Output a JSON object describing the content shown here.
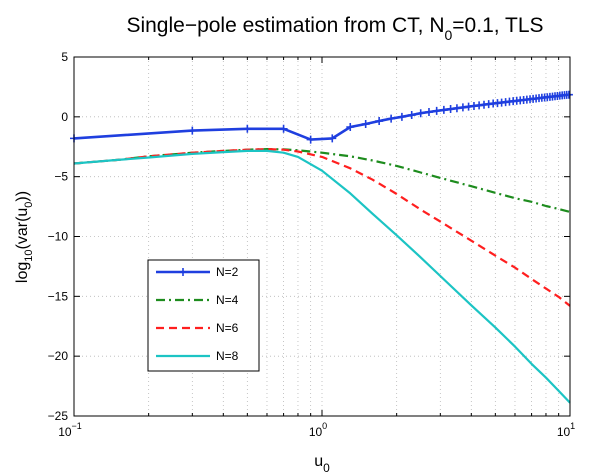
{
  "chart_data": {
    "type": "line",
    "title": "Single−pole estimation from CT, N0=0.1, TLS",
    "title_parts": {
      "prefix": "Single−pole estimation from CT, N",
      "sub": "0",
      "suffix": "=0.1, TLS"
    },
    "xlabel_parts": {
      "base": "u",
      "sub": "0"
    },
    "ylabel_parts": {
      "p1": "log",
      "s1": "10",
      "p2": "(var(u",
      "s2": "0",
      "p3": "))"
    },
    "x_scale": "log",
    "xlim": [
      0.1,
      10
    ],
    "ylim": [
      -25,
      5
    ],
    "x_ticks": [
      {
        "base": "10",
        "exp": "−1",
        "value": 0.1
      },
      {
        "base": "10",
        "exp": "0",
        "value": 1
      },
      {
        "base": "10",
        "exp": "1",
        "value": 10
      }
    ],
    "y_ticks": [
      {
        "label": "5",
        "value": 5
      },
      {
        "label": "0",
        "value": 0
      },
      {
        "label": "−5",
        "value": -5
      },
      {
        "label": "−10",
        "value": -10
      },
      {
        "label": "−15",
        "value": -15
      },
      {
        "label": "−20",
        "value": -20
      },
      {
        "label": "−25",
        "value": -25
      }
    ],
    "grid": true,
    "legend_position": "lower-left",
    "series": [
      {
        "name": "N=2",
        "color": "#1f3fdf",
        "style": "solid-plus",
        "x": [
          0.1,
          0.3,
          0.5,
          0.7,
          0.9,
          1.1,
          1.3,
          1.5,
          1.7,
          1.9,
          2.1,
          2.3,
          2.5,
          2.7,
          2.9,
          3.1,
          3.3,
          3.5,
          3.7,
          3.9,
          4.1,
          4.3,
          4.5,
          4.7,
          4.9,
          5.1,
          5.3,
          5.5,
          5.7,
          5.9,
          6.1,
          6.3,
          6.5,
          6.7,
          6.9,
          7.1,
          7.3,
          7.5,
          7.7,
          7.9,
          8.1,
          8.3,
          8.5,
          8.7,
          8.9,
          9.1,
          9.3,
          9.5,
          9.7,
          9.9
        ],
        "y": [
          -1.8,
          -1.15,
          -1.0,
          -1.0,
          -1.9,
          -1.8,
          -0.85,
          -0.6,
          -0.35,
          -0.15,
          0.0,
          0.15,
          0.3,
          0.4,
          0.5,
          0.58,
          0.65,
          0.72,
          0.79,
          0.85,
          0.91,
          0.96,
          1.01,
          1.06,
          1.11,
          1.15,
          1.19,
          1.23,
          1.27,
          1.31,
          1.34,
          1.38,
          1.41,
          1.44,
          1.47,
          1.5,
          1.53,
          1.56,
          1.59,
          1.62,
          1.64,
          1.67,
          1.69,
          1.72,
          1.74,
          1.77,
          1.79,
          1.81,
          1.83,
          1.85
        ]
      },
      {
        "name": "N=4",
        "color": "#1e8c1e",
        "style": "dashdot",
        "x": [
          0.1,
          0.15,
          0.2,
          0.3,
          0.4,
          0.5,
          0.6,
          0.7,
          0.8,
          1.0,
          1.3,
          1.6,
          2.0,
          2.5,
          3.0,
          4.0,
          5.0,
          6.0,
          7.0,
          8.0,
          9.0,
          10.0
        ],
        "y": [
          -3.9,
          -3.6,
          -3.3,
          -3.0,
          -2.85,
          -2.75,
          -2.7,
          -2.72,
          -2.8,
          -3.0,
          -3.3,
          -3.65,
          -4.1,
          -4.65,
          -5.1,
          -5.8,
          -6.35,
          -6.8,
          -7.1,
          -7.45,
          -7.7,
          -7.95
        ]
      },
      {
        "name": "N=6",
        "color": "#ff1f1f",
        "style": "dashed",
        "x": [
          0.1,
          0.15,
          0.2,
          0.3,
          0.4,
          0.5,
          0.6,
          0.7,
          0.8,
          1.0,
          1.3,
          1.6,
          2.0,
          2.5,
          3.0,
          4.0,
          5.0,
          6.0,
          7.0,
          8.0,
          9.0,
          10.0
        ],
        "y": [
          -3.9,
          -3.6,
          -3.3,
          -3.0,
          -2.85,
          -2.75,
          -2.7,
          -2.75,
          -2.9,
          -3.35,
          -4.3,
          -5.25,
          -6.45,
          -7.75,
          -8.75,
          -10.35,
          -11.6,
          -12.6,
          -13.55,
          -14.35,
          -15.05,
          -15.8
        ]
      },
      {
        "name": "N=8",
        "color": "#1cc4c4",
        "style": "solid",
        "x": [
          0.1,
          0.15,
          0.2,
          0.3,
          0.4,
          0.5,
          0.6,
          0.7,
          0.8,
          1.0,
          1.3,
          1.6,
          2.0,
          2.5,
          3.0,
          4.0,
          5.0,
          6.0,
          7.0,
          8.0,
          9.0,
          10.0
        ],
        "y": [
          -3.9,
          -3.6,
          -3.4,
          -3.1,
          -2.95,
          -2.85,
          -2.85,
          -3.0,
          -3.35,
          -4.5,
          -6.4,
          -8.1,
          -9.9,
          -11.75,
          -13.3,
          -15.75,
          -17.6,
          -19.2,
          -20.65,
          -21.8,
          -22.9,
          -23.9
        ]
      }
    ]
  }
}
